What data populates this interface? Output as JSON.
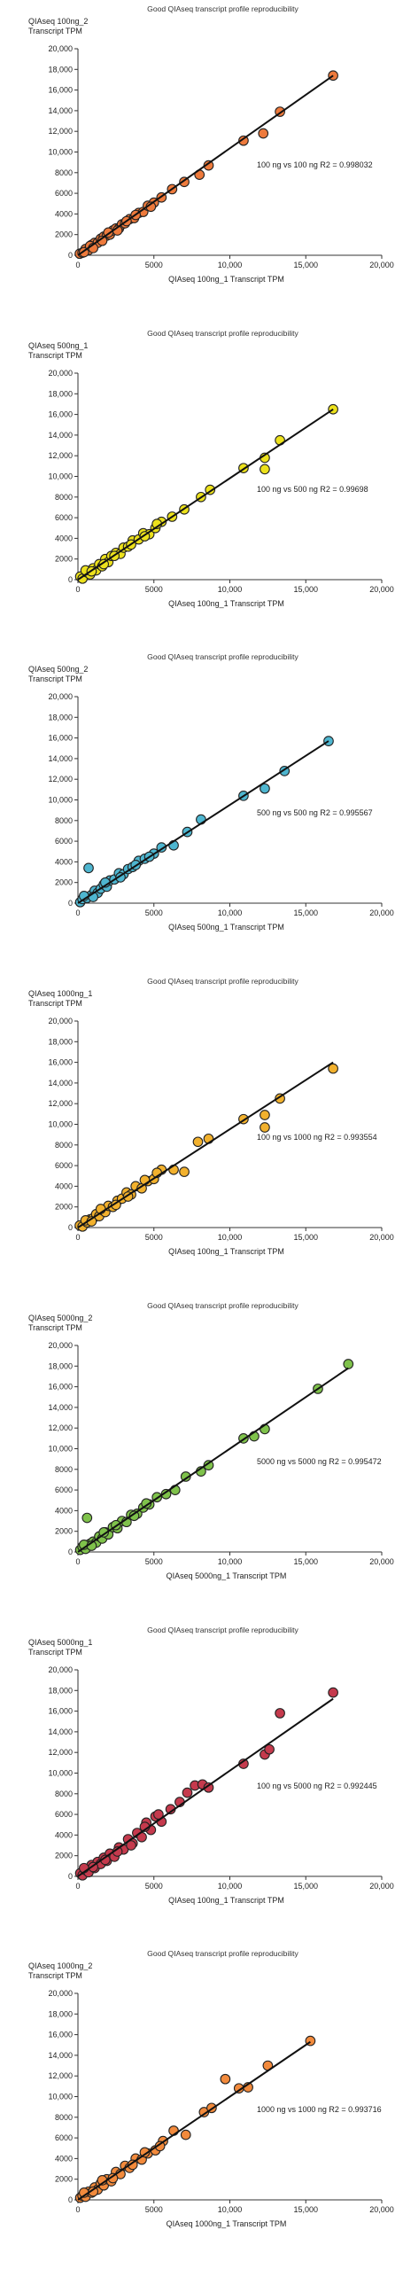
{
  "chart_data": [
    {
      "type": "scatter",
      "title": "Good QIAseq transcript profile reproducibility",
      "ylabel": [
        "QIAseq 100ng_2",
        "Transcript TPM"
      ],
      "xlabel": "QIAseq 100ng_1 Transcript TPM",
      "annotation": "100 ng vs 100 ng R2 = 0.998032",
      "color": "#ee7a3c",
      "xlim": [
        0,
        20000
      ],
      "ylim": [
        0,
        20000
      ],
      "xticks": [
        "0",
        "5000",
        "10,000",
        "15,000",
        "20,000"
      ],
      "yticks": [
        "0",
        "2000",
        "4000",
        "6000",
        "8000",
        "10,000",
        "12,000",
        "14,000",
        "16,000",
        "18,000",
        "20,000"
      ],
      "trendline": [
        [
          0,
          0
        ],
        [
          16800,
          17400
        ]
      ],
      "points": [
        [
          120,
          150
        ],
        [
          300,
          250
        ],
        [
          500,
          600
        ],
        [
          700,
          500
        ],
        [
          900,
          1000
        ],
        [
          1100,
          1200
        ],
        [
          1300,
          1200
        ],
        [
          1500,
          1600
        ],
        [
          1700,
          1800
        ],
        [
          1900,
          1900
        ],
        [
          2100,
          2000
        ],
        [
          2300,
          2400
        ],
        [
          2500,
          2600
        ],
        [
          2700,
          2600
        ],
        [
          2900,
          3000
        ],
        [
          3100,
          3100
        ],
        [
          3400,
          3500
        ],
        [
          3700,
          3600
        ],
        [
          4000,
          4100
        ],
        [
          4300,
          4200
        ],
        [
          4600,
          4800
        ],
        [
          5000,
          5100
        ],
        [
          5500,
          5600
        ],
        [
          6200,
          6400
        ],
        [
          7000,
          7100
        ],
        [
          8000,
          7800
        ],
        [
          8600,
          8700
        ],
        [
          10900,
          11100
        ],
        [
          12200,
          11800
        ],
        [
          13300,
          13900
        ],
        [
          16800,
          17400
        ],
        [
          400,
          300
        ],
        [
          800,
          900
        ],
        [
          1000,
          700
        ],
        [
          1600,
          1400
        ],
        [
          2000,
          2200
        ],
        [
          2600,
          2400
        ],
        [
          3200,
          3300
        ],
        [
          3800,
          3900
        ],
        [
          4800,
          4700
        ]
      ]
    },
    {
      "type": "scatter",
      "title": "Good QIAseq transcript profile reproducibility",
      "ylabel": [
        "QIAseq 500ng_1",
        "Transcript TPM"
      ],
      "xlabel": "QIAseq 100ng_1 Transcript TPM",
      "annotation": "100 ng vs 500 ng R2 = 0.99698",
      "color": "#ece11c",
      "xlim": [
        0,
        20000
      ],
      "ylim": [
        0,
        20000
      ],
      "xticks": [
        "0",
        "5000",
        "10,000",
        "15,000",
        "20,000"
      ],
      "yticks": [
        "0",
        "2000",
        "4000",
        "6000",
        "8000",
        "10,000",
        "12,000",
        "14,000",
        "16,000",
        "18,000",
        "20,000"
      ],
      "trendline": [
        [
          0,
          0
        ],
        [
          16800,
          16500
        ]
      ],
      "points": [
        [
          150,
          300
        ],
        [
          300,
          100
        ],
        [
          600,
          700
        ],
        [
          800,
          500
        ],
        [
          1000,
          1100
        ],
        [
          1200,
          900
        ],
        [
          1400,
          1500
        ],
        [
          1600,
          1300
        ],
        [
          1800,
          2000
        ],
        [
          2000,
          1700
        ],
        [
          2200,
          2300
        ],
        [
          2500,
          2600
        ],
        [
          2800,
          2500
        ],
        [
          3000,
          3100
        ],
        [
          3300,
          3200
        ],
        [
          3600,
          3800
        ],
        [
          4000,
          3900
        ],
        [
          4300,
          4500
        ],
        [
          4700,
          4400
        ],
        [
          5100,
          5000
        ],
        [
          5500,
          5600
        ],
        [
          6200,
          6100
        ],
        [
          7000,
          6800
        ],
        [
          8100,
          8000
        ],
        [
          8700,
          8700
        ],
        [
          10900,
          10800
        ],
        [
          12300,
          11800
        ],
        [
          12300,
          10700
        ],
        [
          13300,
          13500
        ],
        [
          16800,
          16500
        ],
        [
          500,
          900
        ],
        [
          900,
          800
        ],
        [
          1700,
          1500
        ],
        [
          2400,
          2300
        ],
        [
          3500,
          3400
        ],
        [
          4400,
          4200
        ],
        [
          5200,
          5400
        ]
      ]
    },
    {
      "type": "scatter",
      "title": "Good QIAseq transcript profile reproducibility",
      "ylabel": [
        "QIAseq 500ng_2",
        "Transcript TPM"
      ],
      "xlabel": "QIAseq 500ng_1 Transcript TPM",
      "annotation": "500 ng vs 500 ng R2 = 0.995567",
      "color": "#4eb6d0",
      "xlim": [
        0,
        20000
      ],
      "ylim": [
        0,
        20000
      ],
      "xticks": [
        "0",
        "5000",
        "10,000",
        "15,000",
        "20,000"
      ],
      "yticks": [
        "0",
        "2000",
        "4000",
        "6000",
        "8000",
        "10,000",
        "12,000",
        "14,000",
        "16,000",
        "18,000",
        "20,000"
      ],
      "trendline": [
        [
          0,
          0
        ],
        [
          16500,
          15700
        ]
      ],
      "points": [
        [
          150,
          100
        ],
        [
          300,
          400
        ],
        [
          600,
          500
        ],
        [
          700,
          3400
        ],
        [
          900,
          800
        ],
        [
          1100,
          1200
        ],
        [
          1300,
          1000
        ],
        [
          1500,
          1400
        ],
        [
          1700,
          1800
        ],
        [
          1900,
          1600
        ],
        [
          2100,
          2200
        ],
        [
          2400,
          2300
        ],
        [
          2700,
          2900
        ],
        [
          3000,
          2800
        ],
        [
          3300,
          3300
        ],
        [
          3600,
          3500
        ],
        [
          4000,
          4100
        ],
        [
          4400,
          4300
        ],
        [
          5000,
          4800
        ],
        [
          5500,
          5400
        ],
        [
          6300,
          5600
        ],
        [
          7200,
          6900
        ],
        [
          8100,
          8100
        ],
        [
          10900,
          10400
        ],
        [
          12300,
          11100
        ],
        [
          13600,
          12800
        ],
        [
          16500,
          15700
        ],
        [
          400,
          700
        ],
        [
          1000,
          600
        ],
        [
          1800,
          2000
        ],
        [
          2800,
          2500
        ],
        [
          3800,
          3700
        ],
        [
          4700,
          4500
        ]
      ]
    },
    {
      "type": "scatter",
      "title": "Good QIAseq transcript profile reproducibility",
      "ylabel": [
        "QIAseq 1000ng_1",
        "Transcript TPM"
      ],
      "xlabel": "QIAseq 100ng_1 Transcript TPM",
      "annotation": "100 ng vs 1000 ng R2 = 0.993554",
      "color": "#f2b12d",
      "xlim": [
        0,
        20000
      ],
      "ylim": [
        0,
        20000
      ],
      "xticks": [
        "0",
        "5000",
        "10,000",
        "15,000",
        "20,000"
      ],
      "yticks": [
        "0",
        "2000",
        "4000",
        "6000",
        "8000",
        "10,000",
        "12,000",
        "14,000",
        "16,000",
        "18,000",
        "20,000"
      ],
      "trendline": [
        [
          0,
          0
        ],
        [
          16800,
          16000
        ]
      ],
      "points": [
        [
          120,
          200
        ],
        [
          300,
          100
        ],
        [
          600,
          500
        ],
        [
          800,
          800
        ],
        [
          1000,
          900
        ],
        [
          1200,
          1300
        ],
        [
          1400,
          1100
        ],
        [
          1600,
          1700
        ],
        [
          1800,
          1500
        ],
        [
          2000,
          2100
        ],
        [
          2300,
          2000
        ],
        [
          2600,
          2600
        ],
        [
          2900,
          2800
        ],
        [
          3200,
          3400
        ],
        [
          3500,
          3200
        ],
        [
          3800,
          4000
        ],
        [
          4200,
          3800
        ],
        [
          4600,
          4500
        ],
        [
          5000,
          4700
        ],
        [
          5500,
          5600
        ],
        [
          6300,
          5600
        ],
        [
          7000,
          5400
        ],
        [
          7900,
          8300
        ],
        [
          8600,
          8600
        ],
        [
          10900,
          10500
        ],
        [
          12300,
          9700
        ],
        [
          12300,
          10900
        ],
        [
          13300,
          12500
        ],
        [
          16800,
          15400
        ],
        [
          500,
          700
        ],
        [
          900,
          600
        ],
        [
          1500,
          1800
        ],
        [
          2500,
          2200
        ],
        [
          3300,
          3000
        ],
        [
          4400,
          4600
        ],
        [
          5200,
          5300
        ]
      ]
    },
    {
      "type": "scatter",
      "title": "Good QIAseq transcript profile reproducibility",
      "ylabel": [
        "QIAseq 5000ng_2",
        "Transcript TPM"
      ],
      "xlabel": "QIAseq 5000ng_1 Transcript TPM",
      "annotation": "5000 ng vs 5000 ng R2 = 0.995472",
      "color": "#7fc24b",
      "xlim": [
        0,
        20000
      ],
      "ylim": [
        0,
        20000
      ],
      "xticks": [
        "0",
        "5000",
        "10,000",
        "15,000",
        "20,000"
      ],
      "yticks": [
        "0",
        "2000",
        "4000",
        "6000",
        "8000",
        "10,000",
        "12,000",
        "14,000",
        "16,000",
        "18,000",
        "20,000"
      ],
      "trendline": [
        [
          0,
          0
        ],
        [
          17800,
          17800
        ]
      ],
      "points": [
        [
          150,
          200
        ],
        [
          300,
          500
        ],
        [
          500,
          300
        ],
        [
          600,
          3300
        ],
        [
          800,
          800
        ],
        [
          1000,
          1000
        ],
        [
          1200,
          900
        ],
        [
          1400,
          1500
        ],
        [
          1600,
          1300
        ],
        [
          1800,
          1900
        ],
        [
          2000,
          1700
        ],
        [
          2300,
          2400
        ],
        [
          2600,
          2300
        ],
        [
          2900,
          3000
        ],
        [
          3200,
          2900
        ],
        [
          3500,
          3600
        ],
        [
          3900,
          3700
        ],
        [
          4300,
          4300
        ],
        [
          4700,
          4600
        ],
        [
          5200,
          5300
        ],
        [
          5800,
          5600
        ],
        [
          6400,
          6000
        ],
        [
          7100,
          7300
        ],
        [
          8100,
          7800
        ],
        [
          8600,
          8400
        ],
        [
          10900,
          11000
        ],
        [
          11600,
          11200
        ],
        [
          12300,
          11900
        ],
        [
          15800,
          15800
        ],
        [
          17800,
          18200
        ],
        [
          400,
          700
        ],
        [
          900,
          600
        ],
        [
          1700,
          1900
        ],
        [
          2500,
          2600
        ],
        [
          3700,
          3500
        ],
        [
          4500,
          4700
        ]
      ]
    },
    {
      "type": "scatter",
      "title": "Good QIAseq transcript profile reproducibility",
      "ylabel": [
        "QIAseq 5000ng_1",
        "Transcript TPM"
      ],
      "xlabel": "QIAseq 100ng_1 Transcript TPM",
      "annotation": "100 ng vs 5000 ng R2 = 0.992445",
      "color": "#c53a4d",
      "xlim": [
        0,
        20000
      ],
      "ylim": [
        0,
        20000
      ],
      "xticks": [
        "0",
        "5000",
        "10,000",
        "15,000",
        "20,000"
      ],
      "yticks": [
        "0",
        "2000",
        "4000",
        "6000",
        "8000",
        "10,000",
        "12,000",
        "14,000",
        "16,000",
        "18,000",
        "20,000"
      ],
      "trendline": [
        [
          0,
          0
        ],
        [
          16800,
          17200
        ]
      ],
      "points": [
        [
          150,
          300
        ],
        [
          300,
          100
        ],
        [
          500,
          600
        ],
        [
          700,
          400
        ],
        [
          900,
          1100
        ],
        [
          1100,
          800
        ],
        [
          1300,
          1400
        ],
        [
          1500,
          1200
        ],
        [
          1700,
          1800
        ],
        [
          1900,
          1500
        ],
        [
          2100,
          2200
        ],
        [
          2400,
          1900
        ],
        [
          2700,
          2800
        ],
        [
          3000,
          2600
        ],
        [
          3300,
          3600
        ],
        [
          3600,
          3200
        ],
        [
          3900,
          4200
        ],
        [
          4200,
          3800
        ],
        [
          4500,
          5200
        ],
        [
          4800,
          4500
        ],
        [
          5100,
          5800
        ],
        [
          5500,
          5300
        ],
        [
          6100,
          6500
        ],
        [
          6700,
          7200
        ],
        [
          7200,
          8100
        ],
        [
          7700,
          8800
        ],
        [
          8200,
          8900
        ],
        [
          8600,
          8600
        ],
        [
          10900,
          10900
        ],
        [
          12300,
          11800
        ],
        [
          12600,
          12300
        ],
        [
          13300,
          15800
        ],
        [
          16800,
          17800
        ],
        [
          400,
          800
        ],
        [
          1000,
          900
        ],
        [
          1800,
          1600
        ],
        [
          2600,
          2400
        ],
        [
          3500,
          3000
        ],
        [
          4400,
          4800
        ],
        [
          5300,
          6000
        ]
      ]
    },
    {
      "type": "scatter",
      "title": "Good QIAseq transcript profile reproducibility",
      "ylabel": [
        "QIAseq 1000ng_2",
        "Transcript TPM"
      ],
      "xlabel": "QIAseq 1000ng_1 Transcript TPM",
      "annotation": "1000 ng vs 1000 ng R2 = 0.993716",
      "color": "#f28a3c",
      "xlim": [
        0,
        20000
      ],
      "ylim": [
        0,
        20000
      ],
      "xticks": [
        "0",
        "5000",
        "10,000",
        "15,000",
        "20,000"
      ],
      "yticks": [
        "0",
        "2000",
        "4000",
        "6000",
        "8000",
        "10,000",
        "12,000",
        "14,000",
        "16,000",
        "18,000",
        "20,000"
      ],
      "trendline": [
        [
          0,
          0
        ],
        [
          15300,
          15300
        ]
      ],
      "points": [
        [
          150,
          200
        ],
        [
          300,
          400
        ],
        [
          500,
          300
        ],
        [
          700,
          800
        ],
        [
          900,
          700
        ],
        [
          1100,
          1200
        ],
        [
          1300,
          1000
        ],
        [
          1500,
          1600
        ],
        [
          1700,
          1400
        ],
        [
          1900,
          2000
        ],
        [
          2200,
          1800
        ],
        [
          2500,
          2700
        ],
        [
          2800,
          2500
        ],
        [
          3100,
          3300
        ],
        [
          3400,
          3100
        ],
        [
          3800,
          4000
        ],
        [
          4200,
          3900
        ],
        [
          4600,
          4500
        ],
        [
          5100,
          4800
        ],
        [
          5600,
          5700
        ],
        [
          6300,
          6700
        ],
        [
          7100,
          6300
        ],
        [
          8300,
          8500
        ],
        [
          8800,
          8900
        ],
        [
          9700,
          11700
        ],
        [
          10600,
          10800
        ],
        [
          11200,
          10900
        ],
        [
          12500,
          13000
        ],
        [
          15300,
          15400
        ],
        [
          400,
          700
        ],
        [
          1000,
          800
        ],
        [
          1600,
          1900
        ],
        [
          2300,
          2100
        ],
        [
          3600,
          3400
        ],
        [
          4400,
          4600
        ],
        [
          5400,
          5200
        ]
      ]
    }
  ]
}
